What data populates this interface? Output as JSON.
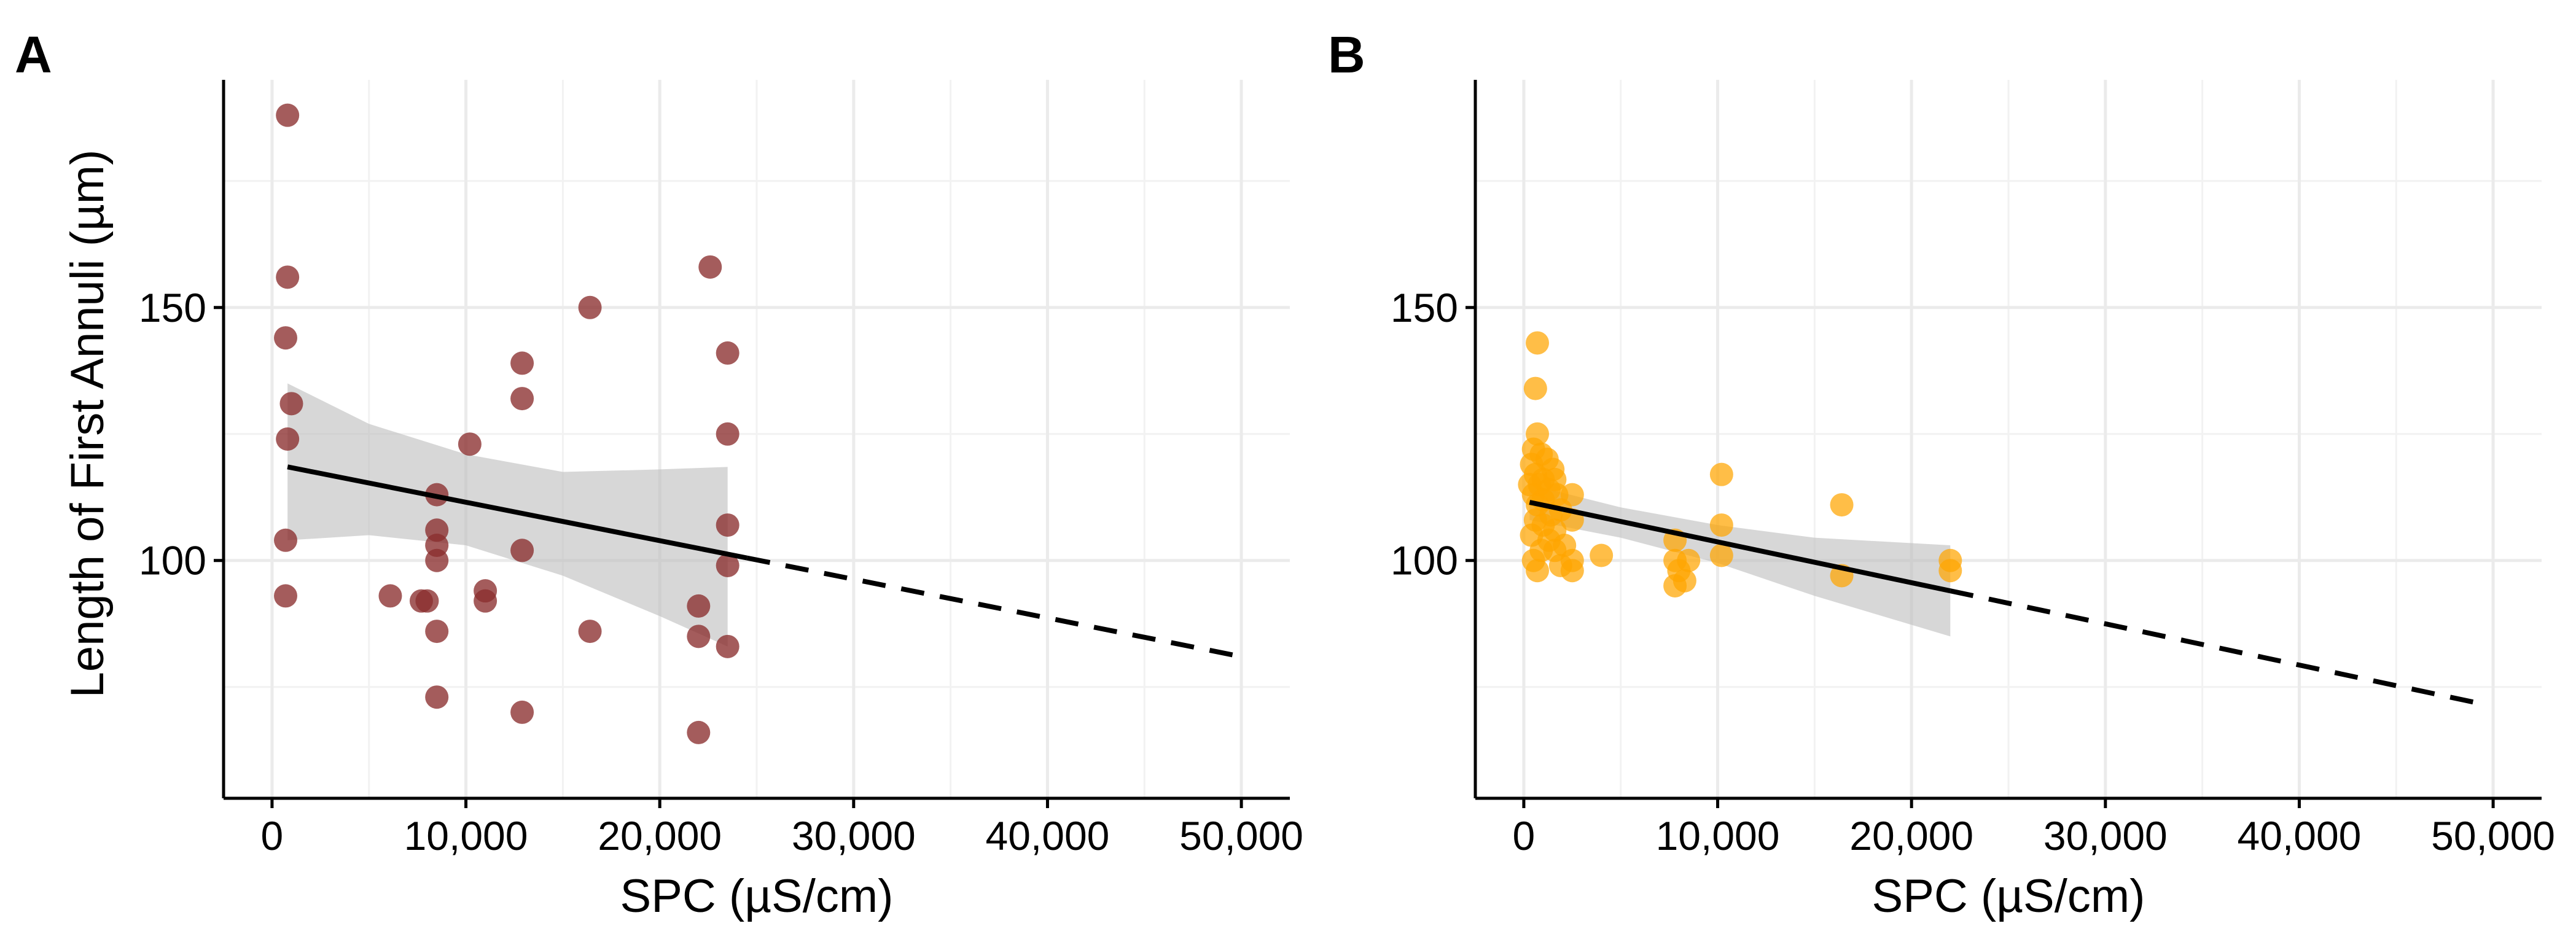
{
  "chart_data": [
    {
      "panel": "A",
      "type": "scatter",
      "xlabel": "SPC (µS/cm)",
      "ylabel": "Length of First Annuli (µm)",
      "xlim": [
        -2500,
        52500
      ],
      "ylim": [
        53,
        195
      ],
      "x_ticks": [
        0,
        10000,
        20000,
        30000,
        40000,
        50000
      ],
      "x_tick_labels": [
        "0",
        "10,000",
        "20,000",
        "30,000",
        "40,000",
        "50,000"
      ],
      "y_ticks": [
        100,
        150
      ],
      "y_tick_labels": [
        "100",
        "150"
      ],
      "y_minor_grid": [
        75,
        125,
        175
      ],
      "x_minor_grid": [
        5000,
        15000,
        25000,
        35000,
        45000
      ],
      "point_color": "#8B2E2E",
      "points": [
        [
          800,
          188
        ],
        [
          800,
          156
        ],
        [
          700,
          144
        ],
        [
          1000,
          131
        ],
        [
          800,
          124
        ],
        [
          700,
          104
        ],
        [
          700,
          93
        ],
        [
          6100,
          93
        ],
        [
          7700,
          92
        ],
        [
          8000,
          92
        ],
        [
          8500,
          113
        ],
        [
          8500,
          106
        ],
        [
          8500,
          103
        ],
        [
          8500,
          100
        ],
        [
          8500,
          86
        ],
        [
          8500,
          73
        ],
        [
          10200,
          123
        ],
        [
          11000,
          94
        ],
        [
          11000,
          92
        ],
        [
          12900,
          139
        ],
        [
          12900,
          132
        ],
        [
          12900,
          102
        ],
        [
          12900,
          70
        ],
        [
          16400,
          150
        ],
        [
          16400,
          86
        ],
        [
          22000,
          91
        ],
        [
          22000,
          85
        ],
        [
          22000,
          66
        ],
        [
          22600,
          158
        ],
        [
          23500,
          141
        ],
        [
          23500,
          125
        ],
        [
          23500,
          107
        ],
        [
          23500,
          99
        ],
        [
          23500,
          83
        ]
      ],
      "fit": {
        "solid_x": [
          800,
          24500
        ],
        "solid_y": [
          118.5,
          100.5
        ],
        "dashed_x": [
          24500,
          50000
        ],
        "dashed_y": [
          100.5,
          81
        ],
        "ci_upper": [
          [
            800,
            135
          ],
          [
            5000,
            127
          ],
          [
            10000,
            121
          ],
          [
            15000,
            117.5
          ],
          [
            20000,
            118
          ],
          [
            23500,
            118.5
          ]
        ],
        "ci_lower": [
          [
            23500,
            83
          ],
          [
            20000,
            89
          ],
          [
            15000,
            97
          ],
          [
            10000,
            103
          ],
          [
            5000,
            105
          ],
          [
            800,
            104
          ]
        ]
      }
    },
    {
      "panel": "B",
      "type": "scatter",
      "xlabel": "SPC (µS/cm)",
      "ylabel": "",
      "xlim": [
        -2500,
        52500
      ],
      "ylim": [
        53,
        195
      ],
      "x_ticks": [
        0,
        10000,
        20000,
        30000,
        40000,
        50000
      ],
      "x_tick_labels": [
        "0",
        "10,000",
        "20,000",
        "30,000",
        "40,000",
        "50,000"
      ],
      "y_ticks": [
        100,
        150
      ],
      "y_tick_labels": [
        "100",
        "150"
      ],
      "y_minor_grid": [
        75,
        125,
        175
      ],
      "x_minor_grid": [
        5000,
        15000,
        25000,
        35000,
        45000
      ],
      "point_color": "#FFA500",
      "points": [
        [
          700,
          143
        ],
        [
          600,
          134
        ],
        [
          700,
          125
        ],
        [
          500,
          122
        ],
        [
          900,
          121
        ],
        [
          400,
          119
        ],
        [
          1200,
          120
        ],
        [
          1500,
          118
        ],
        [
          600,
          117
        ],
        [
          1000,
          116
        ],
        [
          1600,
          116
        ],
        [
          300,
          115
        ],
        [
          800,
          115
        ],
        [
          1300,
          114
        ],
        [
          1700,
          113
        ],
        [
          500,
          113
        ],
        [
          2500,
          113
        ],
        [
          1000,
          112
        ],
        [
          1900,
          110
        ],
        [
          700,
          111
        ],
        [
          1400,
          109
        ],
        [
          2500,
          108
        ],
        [
          600,
          108
        ],
        [
          1000,
          107
        ],
        [
          1600,
          106
        ],
        [
          400,
          105
        ],
        [
          1300,
          104
        ],
        [
          2100,
          103
        ],
        [
          900,
          102
        ],
        [
          1600,
          102
        ],
        [
          2500,
          100
        ],
        [
          500,
          100
        ],
        [
          1900,
          99
        ],
        [
          700,
          98
        ],
        [
          2500,
          98
        ],
        [
          4000,
          101
        ],
        [
          7800,
          104
        ],
        [
          7800,
          100
        ],
        [
          8000,
          98
        ],
        [
          8300,
          96
        ],
        [
          7800,
          95
        ],
        [
          8500,
          100
        ],
        [
          10200,
          117
        ],
        [
          10200,
          107
        ],
        [
          10200,
          101
        ],
        [
          16400,
          111
        ],
        [
          16400,
          97
        ],
        [
          22000,
          100
        ],
        [
          22000,
          98
        ]
      ],
      "fit": {
        "solid_x": [
          300,
          22000
        ],
        "solid_y": [
          111.5,
          94
        ],
        "dashed_x": [
          22000,
          49000
        ],
        "dashed_y": [
          94,
          72
        ],
        "ci_upper": [
          [
            300,
            115
          ],
          [
            5000,
            110.5
          ],
          [
            10000,
            107
          ],
          [
            15000,
            104.5
          ],
          [
            22000,
            103
          ]
        ],
        "ci_lower": [
          [
            22000,
            85
          ],
          [
            15000,
            93
          ],
          [
            10000,
            99.5
          ],
          [
            5000,
            104.5
          ],
          [
            300,
            108
          ]
        ]
      }
    }
  ]
}
